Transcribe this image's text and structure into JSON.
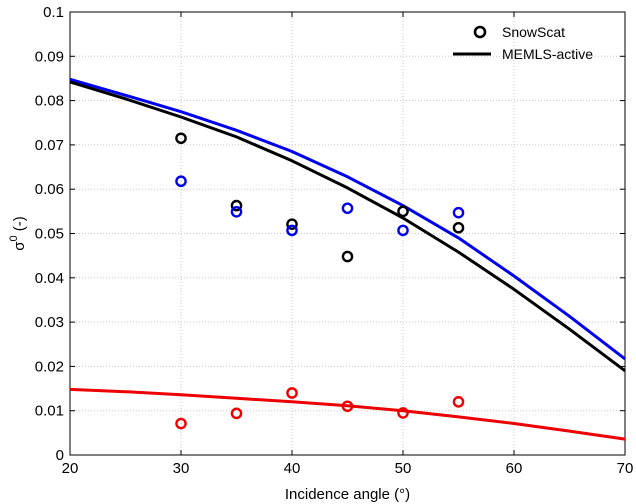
{
  "chart_data": {
    "type": "scatter",
    "title": "",
    "xlabel": "Incidence angle (°)",
    "ylabel_main": "σ",
    "ylabel_sup": "0",
    "ylabel_suffix": " (-)",
    "xlim": [
      20,
      70
    ],
    "ylim": [
      0,
      0.1
    ],
    "xticks": [
      20,
      30,
      40,
      50,
      60,
      70
    ],
    "yticks": [
      0,
      0.01,
      0.02,
      0.03,
      0.04,
      0.05,
      0.06,
      0.07,
      0.08,
      0.09,
      0.1
    ],
    "xtick_labels": [
      "20",
      "30",
      "40",
      "50",
      "60",
      "70"
    ],
    "ytick_labels": [
      "0",
      "0.01",
      "0.02",
      "0.03",
      "0.04",
      "0.05",
      "0.06",
      "0.07",
      "0.08",
      "0.09",
      "0.1"
    ],
    "grid": true,
    "legend_position": "top-right",
    "legend": [
      {
        "label": "SnowScat",
        "kind": "marker",
        "color": "#000000"
      },
      {
        "label": "MEMLS-active",
        "kind": "line",
        "color": "#000000"
      }
    ],
    "measurements": [
      {
        "color": "#000000",
        "x": [
          30,
          35,
          40,
          45,
          50,
          55
        ],
        "y": [
          0.0715,
          0.0563,
          0.0521,
          0.0448,
          0.055,
          0.0513
        ]
      },
      {
        "color": "#0000ee",
        "x": [
          30,
          35,
          40,
          45,
          50,
          55
        ],
        "y": [
          0.0618,
          0.0549,
          0.0507,
          0.0557,
          0.0507,
          0.0547
        ]
      },
      {
        "color": "#ee0000",
        "x": [
          30,
          35,
          40,
          45,
          50,
          55
        ],
        "y": [
          0.0071,
          0.0094,
          0.014,
          0.011,
          0.0095,
          0.012
        ]
      }
    ],
    "model": [
      {
        "color": "#0000ee",
        "x": [
          20,
          25,
          30,
          35,
          40,
          45,
          50,
          55,
          60,
          65,
          70
        ],
        "y": [
          0.0848,
          0.0812,
          0.0775,
          0.0733,
          0.0685,
          0.0628,
          0.0563,
          0.049,
          0.0404,
          0.0313,
          0.0217
        ]
      },
      {
        "color": "#000000",
        "x": [
          20,
          25,
          30,
          35,
          40,
          45,
          50,
          55,
          60,
          65,
          70
        ],
        "y": [
          0.0842,
          0.0804,
          0.0763,
          0.0718,
          0.0664,
          0.0603,
          0.0535,
          0.0458,
          0.0374,
          0.0284,
          0.019
        ]
      },
      {
        "color": "#ee0000",
        "x": [
          20,
          25,
          30,
          35,
          40,
          45,
          50,
          55,
          60,
          65,
          70
        ],
        "y": [
          0.0148,
          0.0143,
          0.0136,
          0.0128,
          0.012,
          0.0111,
          0.01,
          0.0086,
          0.0071,
          0.0054,
          0.0036
        ]
      }
    ]
  }
}
